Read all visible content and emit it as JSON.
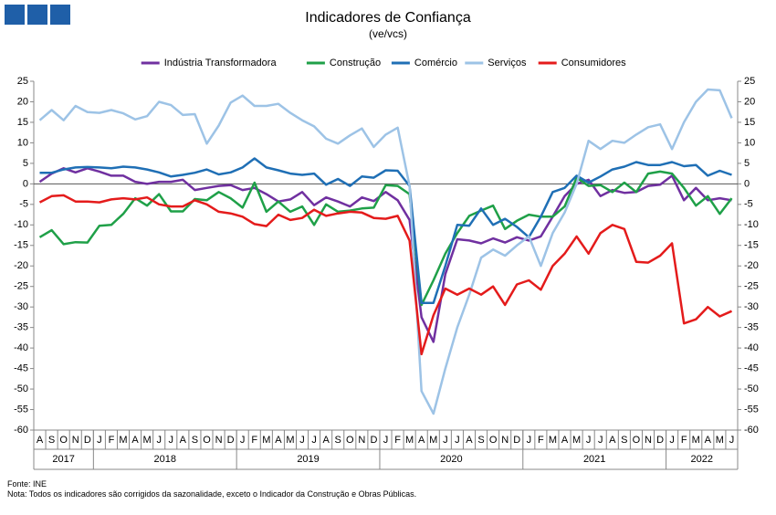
{
  "chart_data": {
    "type": "line",
    "title": "Indicadores de Confiança",
    "subtitle": "(ve/vcs)",
    "categories": [
      "A",
      "S",
      "O",
      "N",
      "D",
      "J",
      "F",
      "M",
      "A",
      "M",
      "J",
      "J",
      "A",
      "S",
      "O",
      "N",
      "D",
      "J",
      "F",
      "M",
      "A",
      "M",
      "J",
      "J",
      "A",
      "S",
      "O",
      "N",
      "D",
      "J",
      "F",
      "M",
      "A",
      "M",
      "J",
      "J",
      "A",
      "S",
      "O",
      "N",
      "D",
      "J",
      "F",
      "M",
      "A",
      "M",
      "J",
      "J",
      "A",
      "S",
      "O",
      "N",
      "D",
      "J",
      "F",
      "M",
      "A",
      "M",
      "J"
    ],
    "years": [
      "2017",
      "2018",
      "2019",
      "2020",
      "2021",
      "2022"
    ],
    "ylim": [
      -60,
      25
    ],
    "yticks": [
      -60,
      -55,
      -50,
      -45,
      -40,
      -35,
      -30,
      -25,
      -20,
      -15,
      -10,
      -5,
      0,
      5,
      10,
      15,
      20,
      25
    ],
    "grid": false,
    "legend": "top",
    "series": [
      {
        "name": "Indústria Transformadora",
        "color": "#7030a0",
        "values": [
          0.5,
          2.5,
          3.8,
          2.8,
          3.8,
          3,
          2,
          2,
          0.5,
          0,
          0.5,
          0.5,
          1,
          -1.5,
          -1,
          -0.5,
          -0.3,
          -1.5,
          -1,
          -2.5,
          -4.3,
          -3.8,
          -2,
          -5.2,
          -3.3,
          -4.3,
          -5.5,
          -3.3,
          -4.2,
          -2,
          -4,
          -8.8,
          -32.5,
          -38.5,
          -22,
          -13.5,
          -13.8,
          -14.5,
          -13.3,
          -14.3,
          -13,
          -13.8,
          -12.8,
          -8,
          -3,
          0,
          1,
          -3,
          -1.5,
          -2.2,
          -2,
          -0.5,
          -0.2,
          2,
          -4,
          -1,
          -4,
          -3.5,
          -4
        ]
      },
      {
        "name": "Construção",
        "color": "#1fa048",
        "values": [
          -13,
          -11.3,
          -14.7,
          -14.2,
          -14.3,
          -10.2,
          -10,
          -7.3,
          -3.5,
          -5.3,
          -2.5,
          -6.7,
          -6.7,
          -3.7,
          -4,
          -2,
          -3.5,
          -5.8,
          0.3,
          -6.8,
          -4.3,
          -6.8,
          -5.5,
          -10,
          -5,
          -6.8,
          -6.5,
          -6,
          -5.8,
          -0.3,
          -0.5,
          -2.5,
          -29.5,
          -23.5,
          -17,
          -12,
          -7.8,
          -6.5,
          -5.3,
          -11,
          -9,
          -7.5,
          -8,
          -8,
          -5.5,
          1.5,
          -0.5,
          -0.3,
          -2,
          0.3,
          -2,
          2.5,
          3,
          2.5,
          -1,
          -5.3,
          -3,
          -7.3,
          -3.5
        ]
      },
      {
        "name": "Comércio",
        "color": "#1f6fb5",
        "values": [
          2.7,
          2.7,
          3.5,
          4,
          4.1,
          4,
          3.8,
          4.2,
          4,
          3.5,
          2.8,
          1.8,
          2.2,
          2.7,
          3.5,
          2.3,
          2.8,
          4,
          6.2,
          4,
          3.3,
          2.5,
          2.2,
          2.5,
          -0.2,
          1.2,
          -0.5,
          1.8,
          1.5,
          3.3,
          3.2,
          -0.5,
          -29,
          -29,
          -20,
          -10,
          -10.2,
          -6,
          -10,
          -8.5,
          -10.5,
          -13,
          -8,
          -2,
          -1,
          2,
          0.3,
          1.8,
          3.5,
          4.2,
          5.3,
          4.6,
          4.6,
          5.3,
          4.3,
          4.6,
          2,
          3.2,
          2.2
        ]
      },
      {
        "name": "Serviços",
        "color": "#9dc3e6",
        "values": [
          15.5,
          18,
          15.5,
          19,
          17.5,
          17.3,
          18,
          17.2,
          15.7,
          16.5,
          20,
          19.2,
          16.8,
          17,
          9.8,
          14.2,
          19.8,
          21.5,
          19,
          19,
          19.5,
          17.3,
          15.5,
          14,
          11,
          9.8,
          11.8,
          13.5,
          9,
          12,
          13.7,
          -0.5,
          -50.5,
          -56,
          -45,
          -35,
          -27,
          -18,
          -16,
          -17.5,
          -15,
          -12.8,
          -20,
          -12,
          -7,
          0,
          10.5,
          8.5,
          10.5,
          10,
          12,
          13.8,
          14.5,
          8.5,
          15,
          20,
          23,
          22.8,
          16
        ]
      },
      {
        "name": "Consumidores",
        "color": "#e41b1b",
        "values": [
          -4.5,
          -3,
          -2.8,
          -4.3,
          -4.3,
          -4.5,
          -3.8,
          -3.5,
          -3.8,
          -3.3,
          -5,
          -5.5,
          -5.5,
          -4,
          -5,
          -6.8,
          -7.2,
          -8,
          -9.8,
          -10.3,
          -7.5,
          -8.8,
          -8.3,
          -6.3,
          -7.8,
          -7.2,
          -6.8,
          -7,
          -8.3,
          -8.5,
          -7.8,
          -13.8,
          -41.5,
          -32,
          -25.5,
          -27,
          -25.5,
          -27,
          -25,
          -29.5,
          -24.5,
          -23.5,
          -25.8,
          -20,
          -17,
          -12.8,
          -17,
          -12,
          -10,
          -11,
          -19,
          -19.2,
          -17.5,
          -14.5,
          -34,
          -33,
          -30,
          -32.3,
          -31
        ]
      }
    ],
    "source": "Fonte: INE",
    "note": "Nota: Todos os indicadores são corrigidos da sazonalidade, exceto o Indicador da Construção e Obras Públicas."
  }
}
